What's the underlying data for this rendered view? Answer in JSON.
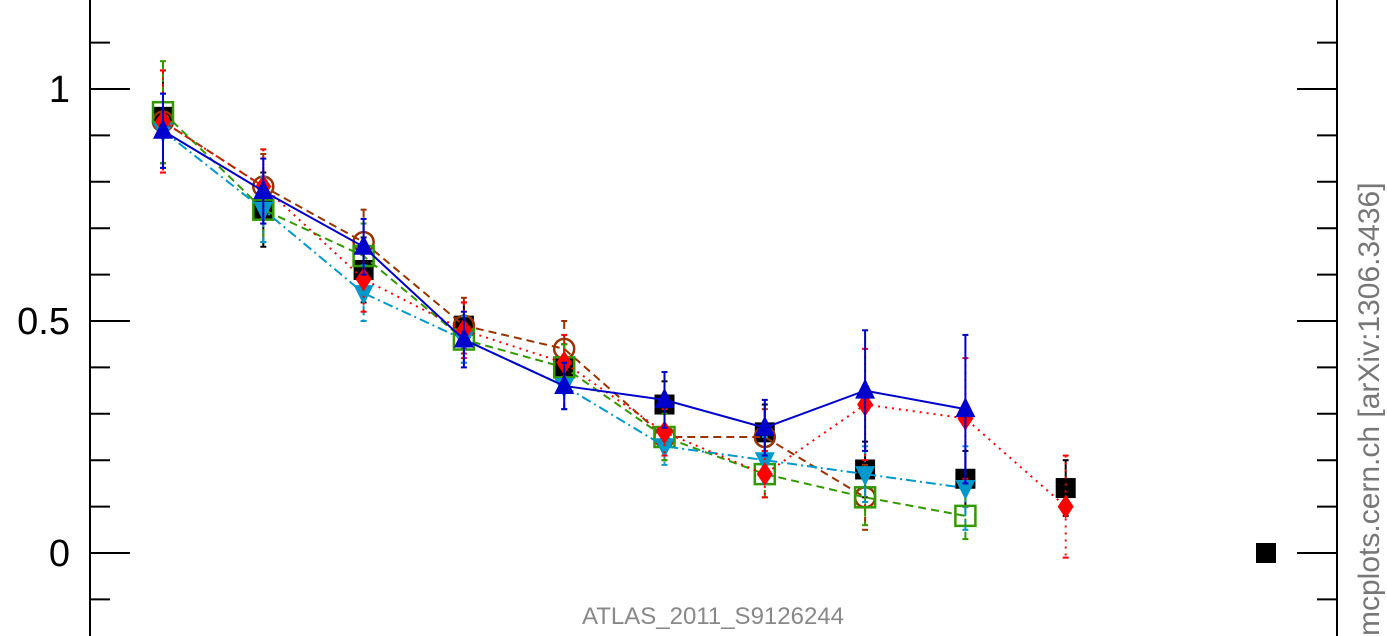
{
  "chart_data": {
    "type": "line",
    "title": "",
    "xlabel": "",
    "ylabel": "",
    "ylim": [
      -0.17,
      1.37
    ],
    "y_ticks": [
      "0",
      "0.5",
      "1"
    ],
    "y_tick_values": [
      0,
      0.5,
      1
    ],
    "x": [
      1,
      2,
      3,
      4,
      5,
      6,
      7,
      8,
      9,
      10
    ],
    "xlim": [
      0.25,
      12.75
    ],
    "series": [
      {
        "color": "#000000",
        "marker": "square-filled",
        "line": "none",
        "values": [
          0.94,
          0.74,
          0.61,
          0.49,
          0.4,
          0.32,
          0.26,
          0.18,
          0.16,
          0.14
        ],
        "errors": [
          0.1,
          0.08,
          0.07,
          0.05,
          0.05,
          0.05,
          0.06,
          0.06,
          0.06,
          0.06
        ]
      },
      {
        "color": "#993300",
        "marker": "circle-open",
        "line": "dashed",
        "values": [
          0.93,
          0.79,
          0.67,
          0.49,
          0.44,
          0.25,
          0.25,
          0.12,
          null,
          null
        ],
        "errors": [
          0.11,
          0.07,
          0.07,
          0.06,
          0.06,
          0.05,
          0.06,
          0.07,
          null,
          null
        ]
      },
      {
        "color": "#339900",
        "marker": "square-open",
        "line": "dashed",
        "values": [
          0.95,
          0.74,
          0.64,
          0.46,
          0.4,
          0.25,
          0.17,
          0.12,
          0.08,
          null
        ],
        "errors": [
          0.11,
          0.07,
          0.07,
          0.05,
          0.05,
          0.05,
          0.05,
          0.06,
          0.05,
          null
        ]
      },
      {
        "color": "#0099cc",
        "marker": "triangle-down",
        "line": "dashdot",
        "values": [
          0.91,
          0.74,
          0.56,
          0.46,
          0.36,
          0.23,
          0.2,
          0.17,
          0.14,
          null
        ],
        "errors": [
          0.08,
          0.07,
          0.06,
          0.05,
          0.05,
          0.04,
          0.05,
          0.06,
          0.09,
          null
        ]
      },
      {
        "color": "#ff0000",
        "marker": "diamond",
        "line": "dotted",
        "values": [
          0.93,
          0.79,
          0.59,
          0.48,
          0.41,
          0.26,
          0.17,
          0.32,
          0.29,
          0.1
        ],
        "errors": [
          0.11,
          0.08,
          0.07,
          0.06,
          0.06,
          0.05,
          0.05,
          0.12,
          0.13,
          0.11
        ]
      },
      {
        "color": "#0000cc",
        "marker": "triangle-up",
        "line": "solid",
        "values": [
          0.91,
          0.78,
          0.66,
          0.46,
          0.36,
          0.33,
          0.27,
          0.35,
          0.31,
          null
        ],
        "errors": [
          0.08,
          0.07,
          0.06,
          0.06,
          0.05,
          0.06,
          0.06,
          0.13,
          0.16,
          null
        ]
      }
    ],
    "legend_marker": {
      "color": "#000000",
      "marker": "square-filled",
      "placement": "bottom-right"
    },
    "watermark": "ATLAS_2011_S9126244",
    "side_credit": "mcplots.cern.ch [arXiv:1306.3436]"
  }
}
